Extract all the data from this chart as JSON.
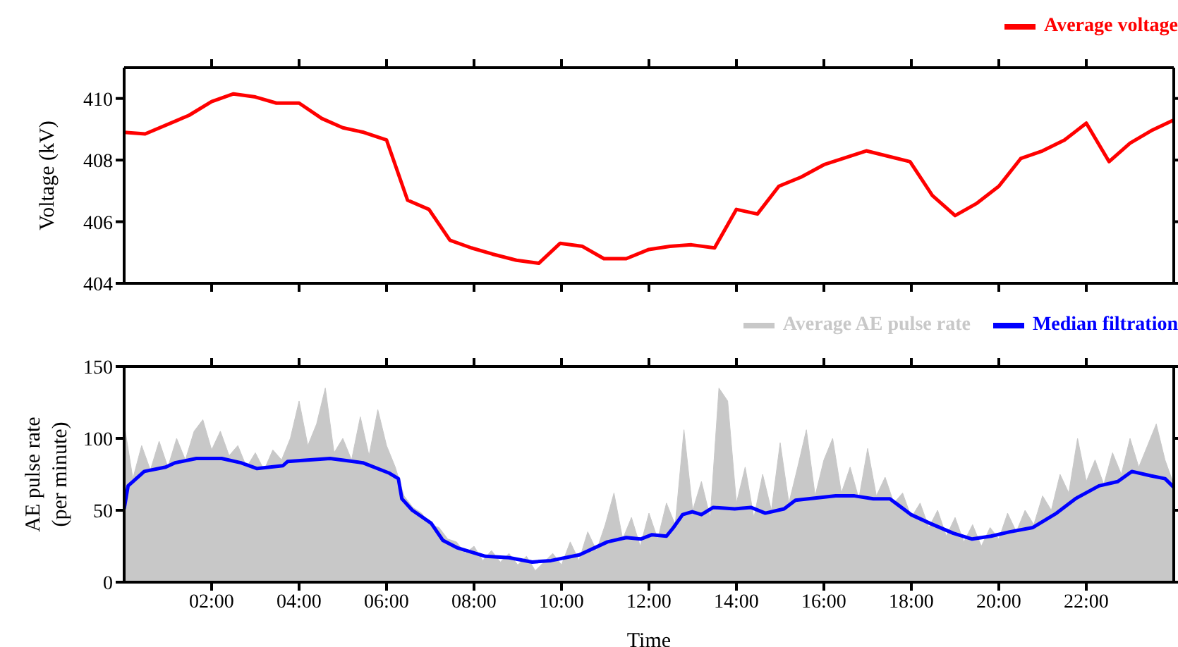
{
  "chart_data": [
    {
      "type": "line",
      "ylabel": "Voltage (kV)",
      "xlim": [
        0,
        24
      ],
      "xticks": [
        {
          "value": 2,
          "label": null
        },
        {
          "value": 4,
          "label": null
        },
        {
          "value": 6,
          "label": null
        },
        {
          "value": 8,
          "label": null
        },
        {
          "value": 10,
          "label": null
        },
        {
          "value": 12,
          "label": null
        },
        {
          "value": 14,
          "label": null
        },
        {
          "value": 16,
          "label": null
        },
        {
          "value": 18,
          "label": null
        },
        {
          "value": 20,
          "label": null
        },
        {
          "value": 22,
          "label": null
        }
      ],
      "tick_labels": "y",
      "ylim": [
        404,
        411
      ],
      "yticks": [
        404,
        406,
        408,
        410
      ],
      "grid": false,
      "legend": "top right",
      "line_style": "solid",
      "marker": "none",
      "x": [
        0,
        0.48,
        1.48,
        2,
        2.5,
        3,
        3.48,
        4,
        4.52,
        5,
        5.48,
        6,
        6.48,
        6.97,
        7.45,
        7.94,
        8.42,
        8.97,
        9.48,
        9.97,
        10.48,
        10.97,
        11.48,
        12,
        12.48,
        12.97,
        13.5,
        14,
        14.48,
        14.97,
        15.48,
        16,
        16.97,
        17.97,
        18.48,
        19,
        19.5,
        20,
        20.5,
        21,
        21.5,
        22,
        22.52,
        23,
        23.48,
        24
      ],
      "series": [
        {
          "name": "Average voltage",
          "color": "#ff0000",
          "values": [
            408.9,
            408.85,
            409.45,
            409.9,
            410.15,
            410.05,
            409.85,
            409.85,
            409.35,
            409.05,
            408.9,
            408.65,
            406.7,
            406.4,
            405.4,
            405.15,
            404.95,
            404.75,
            404.65,
            405.3,
            405.2,
            404.8,
            404.8,
            405.1,
            405.2,
            405.25,
            405.15,
            406.4,
            406.25,
            407.15,
            407.45,
            407.85,
            408.3,
            407.95,
            406.85,
            406.2,
            406.6,
            407.15,
            408.05,
            408.3,
            408.65,
            409.2,
            407.95,
            408.55,
            408.95,
            409.3
          ]
        }
      ]
    },
    {
      "type": "line",
      "xlabel": "Time",
      "ylabel": "AE pulse rate (per minute)",
      "xlim": [
        0,
        24
      ],
      "xticks": [
        {
          "value": 2,
          "label": "02:00"
        },
        {
          "value": 4,
          "label": "04:00"
        },
        {
          "value": 6,
          "label": "06:00"
        },
        {
          "value": 8,
          "label": "08:00"
        },
        {
          "value": 10,
          "label": "10:00"
        },
        {
          "value": 12,
          "label": "12:00"
        },
        {
          "value": 14,
          "label": "14:00"
        },
        {
          "value": 16,
          "label": "16:00"
        },
        {
          "value": 18,
          "label": "18:00"
        },
        {
          "value": 20,
          "label": "20:00"
        },
        {
          "value": 22,
          "label": "22:00"
        }
      ],
      "ylim": [
        0,
        150
      ],
      "yticks": [
        0,
        50,
        100,
        150
      ],
      "grid": false,
      "legend": "top right",
      "line_style": "solid",
      "marker": "none",
      "x": [
        0,
        0.2,
        0.4,
        0.6,
        0.8,
        1,
        1.2,
        1.4,
        1.6,
        1.8,
        2,
        2.2,
        2.4,
        2.6,
        2.8,
        3,
        3.2,
        3.4,
        3.6,
        3.8,
        4,
        4.2,
        4.4,
        4.6,
        4.8,
        5,
        5.2,
        5.4,
        5.6,
        5.8,
        6,
        6.2,
        6.4,
        6.6,
        6.8,
        7,
        7.2,
        7.4,
        7.6,
        7.8,
        8,
        8.2,
        8.4,
        8.6,
        8.8,
        9,
        9.2,
        9.4,
        9.6,
        9.8,
        10,
        10.2,
        10.4,
        10.6,
        10.8,
        11,
        11.2,
        11.4,
        11.6,
        11.8,
        12,
        12.2,
        12.4,
        12.6,
        12.8,
        13,
        13.2,
        13.4,
        13.6,
        13.8,
        14,
        14.2,
        14.4,
        14.6,
        14.8,
        15,
        15.2,
        15.4,
        15.6,
        15.8,
        16,
        16.2,
        16.4,
        16.6,
        16.8,
        17,
        17.2,
        17.4,
        17.6,
        17.8,
        18,
        18.2,
        18.4,
        18.6,
        18.8,
        19,
        19.2,
        19.4,
        19.6,
        19.8,
        20,
        20.2,
        20.4,
        20.6,
        20.8,
        21,
        21.2,
        21.4,
        21.6,
        21.8,
        22,
        22.2,
        22.4,
        22.6,
        22.8,
        23,
        23.2,
        23.4,
        23.6,
        23.8,
        24
      ],
      "series": [
        {
          "name": "Average AE pulse rate",
          "type": "area",
          "color": "#c8c8c8",
          "values": [
            110,
            72,
            95,
            78,
            98,
            80,
            100,
            85,
            105,
            113,
            92,
            105,
            88,
            95,
            80,
            90,
            78,
            92,
            85,
            100,
            126,
            95,
            110,
            135,
            90,
            100,
            85,
            115,
            88,
            120,
            95,
            80,
            60,
            52,
            48,
            40,
            38,
            30,
            28,
            20,
            25,
            15,
            22,
            14,
            20,
            12,
            18,
            8,
            14,
            20,
            12,
            28,
            15,
            35,
            22,
            40,
            62,
            30,
            45,
            25,
            48,
            30,
            55,
            40,
            106,
            50,
            70,
            45,
            135,
            126,
            55,
            80,
            45,
            75,
            50,
            97,
            55,
            80,
            106,
            60,
            85,
            100,
            62,
            80,
            58,
            93,
            60,
            73,
            55,
            62,
            45,
            55,
            38,
            50,
            32,
            45,
            28,
            40,
            25,
            38,
            30,
            48,
            35,
            50,
            40,
            60,
            50,
            75,
            62,
            100,
            70,
            85,
            68,
            90,
            75,
            100,
            80,
            95,
            110,
            85,
            68
          ]
        },
        {
          "name": "Median filtration",
          "color": "#0000ff",
          "x": [
            0,
            0.09,
            0.46,
            0.95,
            1.16,
            1.65,
            2.23,
            2.67,
            3.04,
            3.63,
            3.74,
            4.71,
            5.46,
            6.05,
            6.27,
            6.35,
            6.59,
            7.02,
            7.29,
            7.61,
            8.26,
            8.8,
            9.33,
            9.76,
            10.41,
            11.05,
            11.48,
            11.81,
            12.07,
            12.4,
            12.56,
            12.77,
            12.99,
            13.2,
            13.47,
            13.96,
            14.33,
            14.66,
            15.09,
            15.35,
            16.27,
            16.7,
            17.13,
            17.51,
            17.99,
            18.42,
            18.96,
            19.39,
            19.82,
            20.25,
            20.78,
            21.32,
            21.75,
            22.29,
            22.72,
            23.04,
            23.47,
            23.8,
            24
          ],
          "values": [
            51,
            67,
            77,
            80,
            83,
            86,
            86,
            83,
            79,
            81,
            84,
            86,
            83,
            76,
            72,
            58,
            50,
            41,
            29,
            24,
            18,
            17,
            14,
            15,
            19,
            28,
            31,
            30,
            33,
            32,
            38,
            47,
            49,
            47,
            52,
            51,
            52,
            48,
            51,
            57,
            60,
            60,
            58,
            58,
            47,
            41,
            34,
            30,
            32,
            35,
            38,
            48,
            58,
            67,
            70,
            77,
            74,
            72,
            66
          ]
        }
      ]
    }
  ]
}
